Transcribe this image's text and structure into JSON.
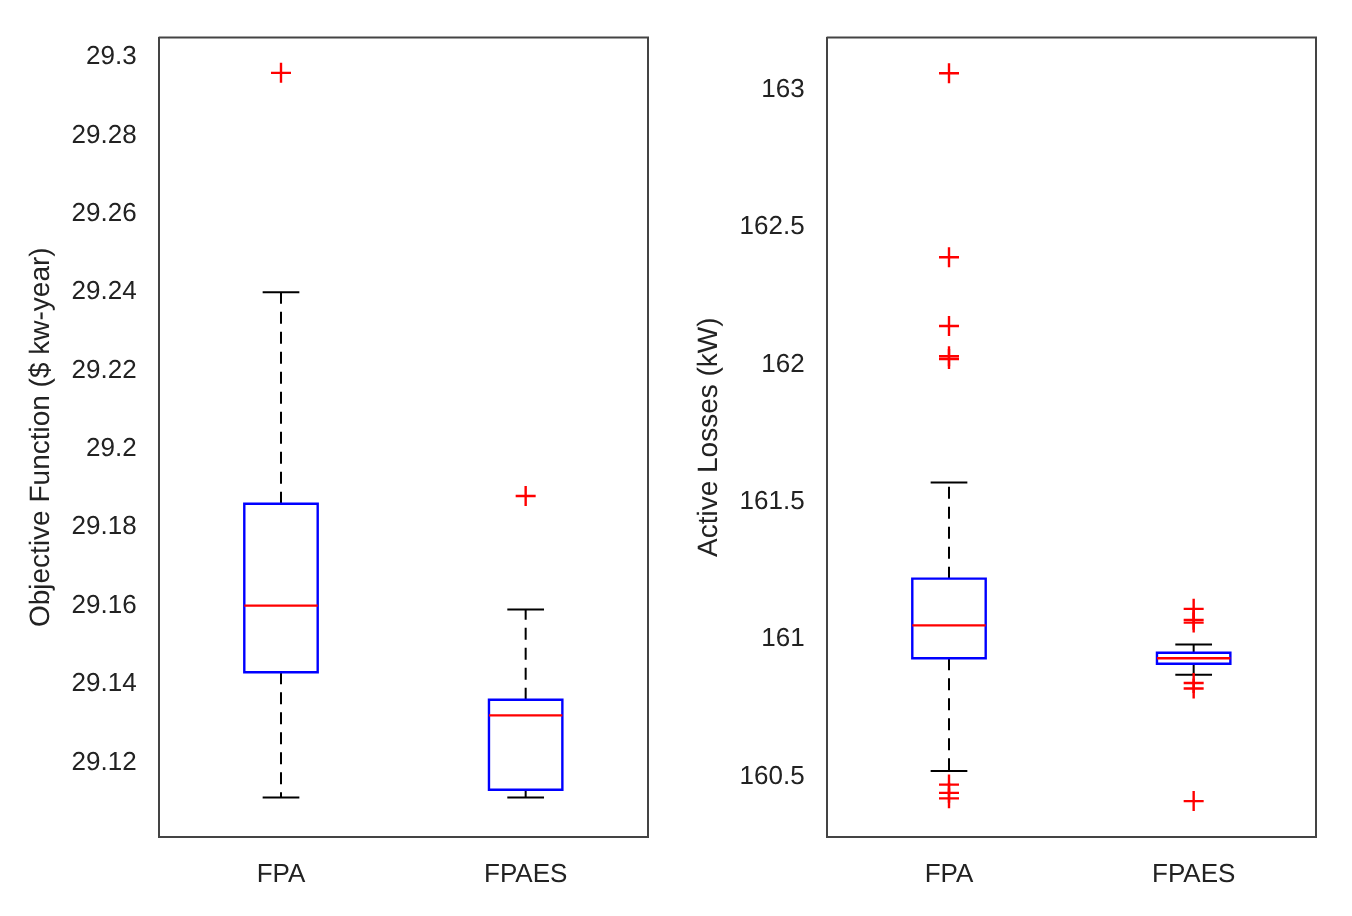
{
  "chart_data": [
    {
      "type": "box",
      "ylabel": "Objective Function ($ kw-year)",
      "categories": [
        "FPA",
        "FPAES"
      ],
      "ylim": [
        29.101,
        29.305
      ],
      "yticks": [
        29.12,
        29.14,
        29.16,
        29.18,
        29.2,
        29.22,
        29.24,
        29.26,
        29.28,
        29.3
      ],
      "color": "#0000ff",
      "boxes": [
        {
          "low": 29.111,
          "q1": 29.143,
          "median": 29.16,
          "q3": 29.186,
          "high": 29.24,
          "outliers": [
            29.296
          ]
        },
        {
          "low": 29.111,
          "q1": 29.113,
          "median": 29.132,
          "q3": 29.136,
          "high": 29.159,
          "outliers": [
            29.188
          ]
        }
      ]
    },
    {
      "type": "box",
      "ylabel": "Active Losses (kW)",
      "categories": [
        "FPA",
        "FPAES"
      ],
      "ylim": [
        160.28,
        163.19
      ],
      "yticks": [
        160.5,
        161,
        161.5,
        162,
        162.5,
        163
      ],
      "color": "#0000ff",
      "boxes": [
        {
          "low": 160.52,
          "q1": 160.93,
          "median": 161.05,
          "q3": 161.22,
          "high": 161.57,
          "outliers": [
            163.06,
            162.39,
            162.14,
            162.03,
            162.02,
            160.47,
            160.44,
            160.42
          ]
        },
        {
          "low": 160.87,
          "q1": 160.91,
          "median": 160.93,
          "q3": 160.95,
          "high": 160.98,
          "outliers": [
            161.11,
            161.07,
            161.06,
            160.84,
            160.82,
            160.41
          ]
        }
      ]
    }
  ]
}
